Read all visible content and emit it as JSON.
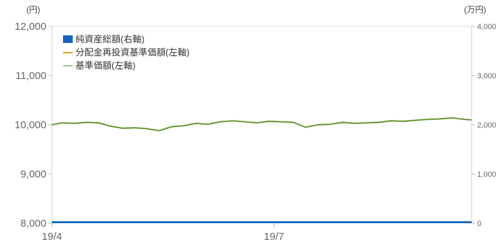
{
  "chart_data": {
    "type": "line",
    "left_axis": {
      "unit": "(円)",
      "range": [
        8000,
        12000
      ],
      "ticks": [
        "8,000",
        "9,000",
        "10,000",
        "11,000",
        "12,000"
      ]
    },
    "right_axis": {
      "unit": "(万円)",
      "range": [
        0,
        4000
      ],
      "ticks": [
        "0",
        "1,000",
        "2,000",
        "3,000",
        "4,000"
      ]
    },
    "x_axis": {
      "range": [
        "2019-04-01",
        "2019-09-20"
      ],
      "tick_labels": [
        {
          "label": "19/4",
          "date": "2019-04-01"
        },
        {
          "label": "19/7",
          "date": "2019-07-01"
        }
      ]
    },
    "legend": {
      "placement": "top-left",
      "items": [
        {
          "label": "純資産総額(右軸)",
          "color": "#1565c0",
          "kind": "bar"
        },
        {
          "label": "分配金再投資基準価額(左軸)",
          "color": "#e0a020",
          "kind": "line"
        },
        {
          "label": "基準価額(左軸)",
          "color": "#8fd19e",
          "kind": "line"
        }
      ]
    },
    "series": [
      {
        "name": "分配金再投資基準価額(左軸)",
        "axis": "left",
        "color": "#6e8a1e",
        "x": [
          "2019-04-01",
          "2019-04-05",
          "2019-04-10",
          "2019-04-15",
          "2019-04-20",
          "2019-04-25",
          "2019-04-30",
          "2019-05-05",
          "2019-05-10",
          "2019-05-15",
          "2019-05-20",
          "2019-05-25",
          "2019-05-30",
          "2019-06-04",
          "2019-06-09",
          "2019-06-14",
          "2019-06-19",
          "2019-06-24",
          "2019-06-29",
          "2019-07-04",
          "2019-07-09",
          "2019-07-14",
          "2019-07-19",
          "2019-07-24",
          "2019-07-29",
          "2019-08-03",
          "2019-08-08",
          "2019-08-13",
          "2019-08-18",
          "2019-08-23",
          "2019-08-28",
          "2019-09-02",
          "2019-09-07",
          "2019-09-12",
          "2019-09-17",
          "2019-09-20"
        ],
        "values": [
          10000,
          10040,
          10030,
          10050,
          10040,
          9970,
          9930,
          9940,
          9920,
          9880,
          9960,
          9980,
          10030,
          10010,
          10060,
          10080,
          10060,
          10040,
          10070,
          10060,
          10050,
          9950,
          10000,
          10010,
          10050,
          10030,
          10040,
          10050,
          10080,
          10070,
          10090,
          10110,
          10120,
          10140,
          10110,
          10100
        ]
      },
      {
        "name": "基準価額(左軸)",
        "axis": "left",
        "color": "#8fd19e",
        "x": [
          "2019-04-01",
          "2019-04-05",
          "2019-04-10",
          "2019-04-15",
          "2019-04-20",
          "2019-04-25",
          "2019-04-30",
          "2019-05-05",
          "2019-05-10",
          "2019-05-15",
          "2019-05-20",
          "2019-05-25",
          "2019-05-30",
          "2019-06-04",
          "2019-06-09",
          "2019-06-14",
          "2019-06-19",
          "2019-06-24",
          "2019-06-29",
          "2019-07-04",
          "2019-07-09",
          "2019-07-14",
          "2019-07-19",
          "2019-07-24",
          "2019-07-29",
          "2019-08-03",
          "2019-08-08",
          "2019-08-13",
          "2019-08-18",
          "2019-08-23",
          "2019-08-28",
          "2019-09-02",
          "2019-09-07",
          "2019-09-12",
          "2019-09-17",
          "2019-09-20"
        ],
        "values": [
          10000,
          10040,
          10030,
          10050,
          10040,
          9970,
          9930,
          9940,
          9920,
          9880,
          9960,
          9980,
          10030,
          10010,
          10060,
          10080,
          10060,
          10040,
          10070,
          10060,
          10050,
          9950,
          10000,
          10010,
          10050,
          10030,
          10040,
          10050,
          10080,
          10070,
          10090,
          10110,
          10120,
          10140,
          10110,
          10100
        ]
      },
      {
        "name": "純資産総額(右軸)",
        "axis": "right",
        "color": "#1565c0",
        "x": [
          "2019-04-01",
          "2019-09-20"
        ],
        "values": [
          40,
          40
        ]
      }
    ],
    "grid": false
  }
}
